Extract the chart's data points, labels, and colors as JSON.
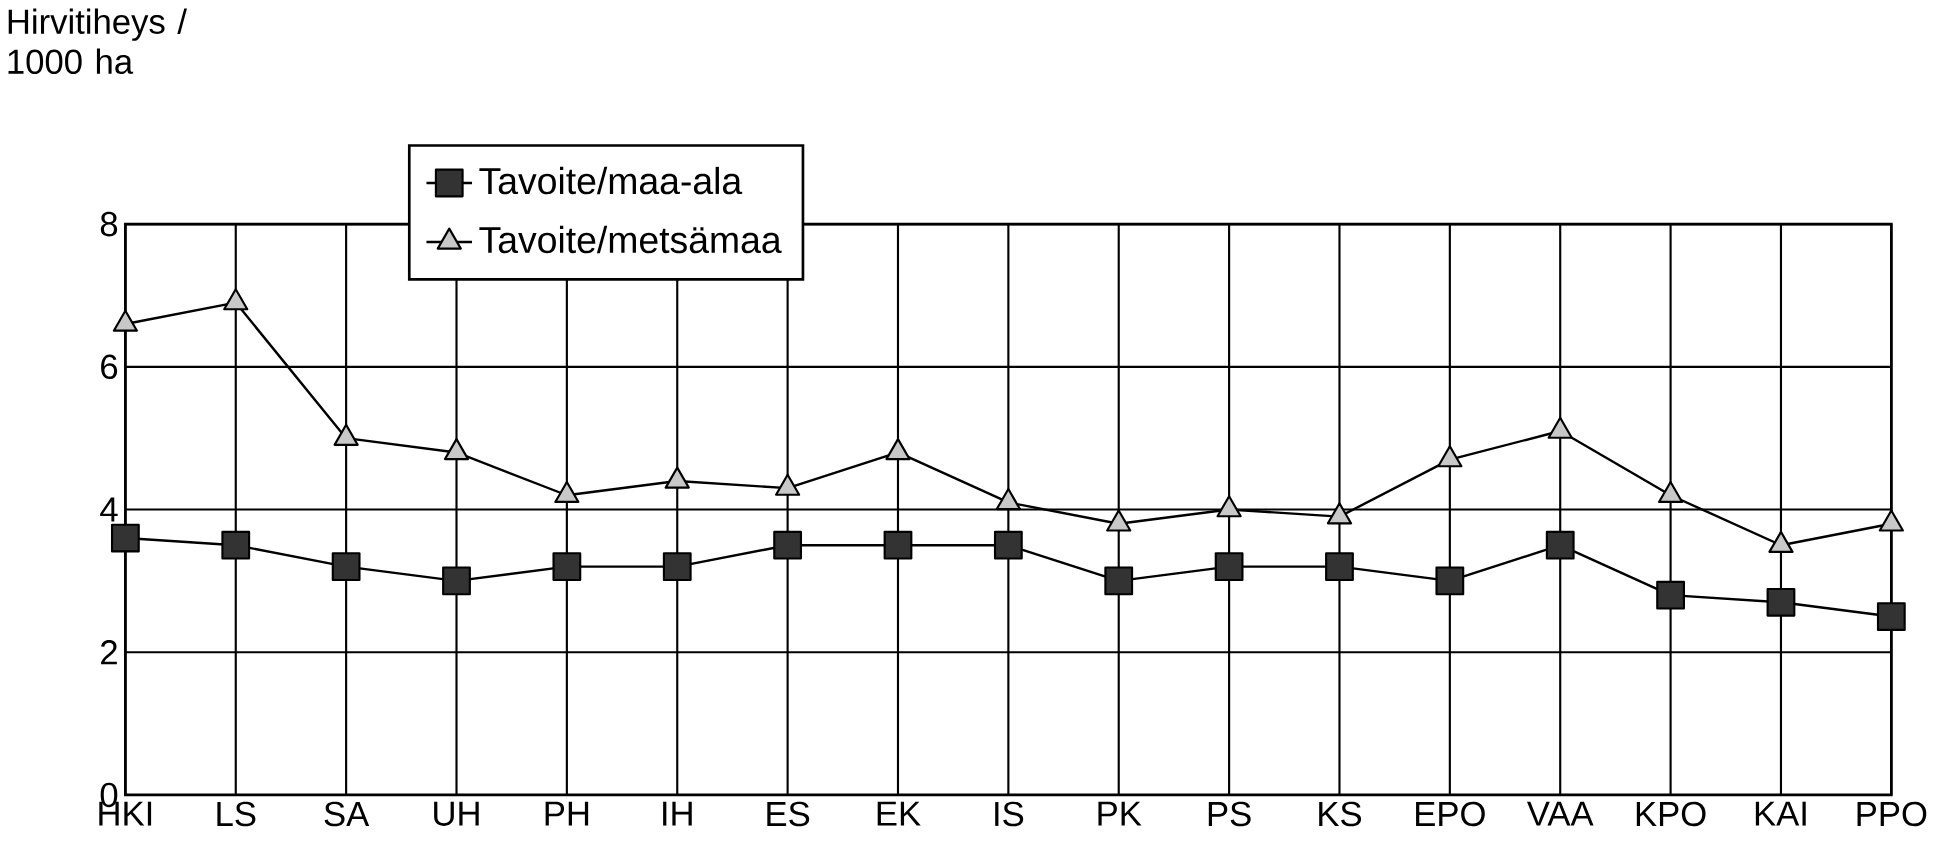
{
  "chart_data": {
    "type": "line",
    "ylabel": "Hirvitiheys / 1000 ha",
    "categories": [
      "HKI",
      "LS",
      "SA",
      "UH",
      "PH",
      "IH",
      "ES",
      "EK",
      "IS",
      "PK",
      "PS",
      "KS",
      "EPO",
      "VAA",
      "KPO",
      "KAI",
      "PPO"
    ],
    "series": [
      {
        "name": "Tavoite/maa-ala",
        "color": "#333333",
        "marker": "square",
        "values": [
          3.6,
          3.5,
          3.2,
          3.0,
          3.2,
          3.2,
          3.5,
          3.5,
          3.5,
          3.0,
          3.2,
          3.2,
          3.0,
          3.5,
          2.8,
          2.7,
          2.5
        ]
      },
      {
        "name": "Tavoite/metsämaa",
        "color": "#c8c8c8",
        "marker": "triangle",
        "values": [
          6.6,
          6.9,
          5.0,
          4.8,
          4.2,
          4.4,
          4.3,
          4.8,
          4.1,
          3.8,
          4.0,
          3.9,
          4.7,
          5.1,
          4.2,
          3.5,
          3.8
        ]
      }
    ],
    "ylim": [
      0,
      8
    ],
    "yticks": [
      0,
      2,
      4,
      6,
      8
    ],
    "grid": true,
    "legend": "top",
    "line_style": "solid"
  }
}
